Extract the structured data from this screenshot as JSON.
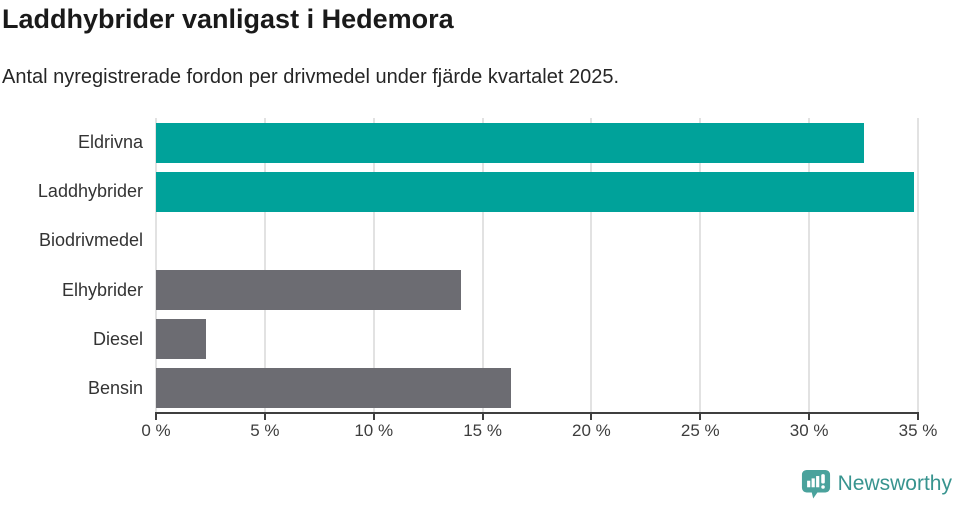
{
  "chart_data": {
    "type": "bar",
    "orientation": "horizontal",
    "title": "Laddhybrider vanligast i Hedemora",
    "subtitle": "Antal nyregistrerade fordon per drivmedel under fjärde kvartalet 2025.",
    "categories": [
      "Eldrivna",
      "Laddhybrider",
      "Biodrivmedel",
      "Elhybrider",
      "Diesel",
      "Bensin"
    ],
    "values": [
      32.5,
      34.8,
      0,
      14.0,
      2.3,
      16.3
    ],
    "unit": "%",
    "bar_colors": [
      "#00a29a",
      "#00a29a",
      "#00a29a",
      "#6c6c72",
      "#6c6c72",
      "#6c6c72"
    ],
    "accent_teal": "#00a29a",
    "accent_gray": "#6c6c72",
    "xlim": [
      0,
      35
    ],
    "xticks": [
      {
        "value": 0,
        "label": "0 %"
      },
      {
        "value": 5,
        "label": "5 %"
      },
      {
        "value": 10,
        "label": "10 %"
      },
      {
        "value": 15,
        "label": "15 %"
      },
      {
        "value": 20,
        "label": "20 %"
      },
      {
        "value": 25,
        "label": "25 %"
      },
      {
        "value": 30,
        "label": "30 %"
      },
      {
        "value": 35,
        "label": "35 %"
      }
    ],
    "grid": "vertical",
    "legend": "none"
  },
  "footer": {
    "brand": "Newsworthy",
    "brand_text_color": "#38948f",
    "logo_bubble_color": "#4aa29c"
  }
}
